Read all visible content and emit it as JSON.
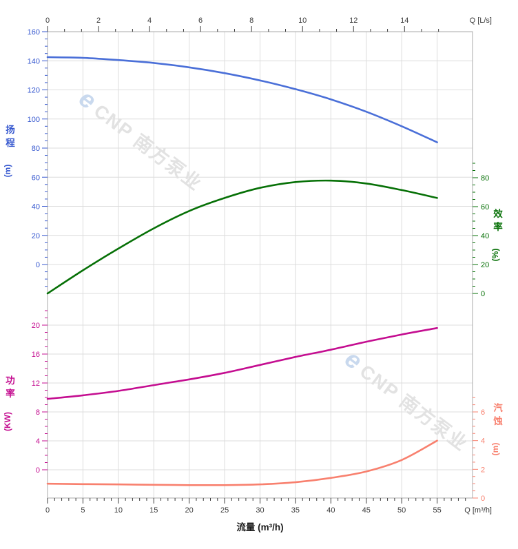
{
  "watermark": {
    "logo_glyph": "e",
    "text": "CNP 南方泵业",
    "positions": [
      [
        112,
        148
      ],
      [
        498,
        526
      ]
    ],
    "angle_deg": 37,
    "text_color": "#e2e2e2",
    "logo_color": "#c9d9ee"
  },
  "axes": {
    "top": {
      "unit_label": "Q [L/s]",
      "ticks": [
        0,
        2,
        4,
        6,
        8,
        10,
        12,
        14
      ],
      "color": "#3a3a3a"
    },
    "bottom": {
      "unit_label": "Q [m³/h]",
      "title": "流量 (m³/h)",
      "ticks": [
        0,
        5,
        10,
        15,
        20,
        25,
        30,
        35,
        40,
        45,
        50,
        55
      ],
      "color": "#3a3a3a"
    },
    "head": {
      "title_chars": [
        "扬",
        "程"
      ],
      "unit": "(m)",
      "ticks": [
        160,
        140,
        120,
        100,
        80,
        60,
        40,
        20,
        0
      ],
      "color": "#3557cf"
    },
    "efficiency": {
      "title_chars": [
        "效",
        "率"
      ],
      "unit": "(%)",
      "ticks": [
        80,
        60,
        40,
        20,
        0
      ],
      "color": "#067006"
    },
    "power": {
      "title_chars": [
        "功",
        "率"
      ],
      "unit": "(KW)",
      "ticks": [
        20,
        16,
        12,
        8,
        4,
        0
      ],
      "color": "#c40d90"
    },
    "npsh": {
      "title_chars": [
        "汽",
        "蚀"
      ],
      "unit": "(m)",
      "ticks": [
        6,
        4,
        2,
        0
      ],
      "color": "#f8806e"
    }
  },
  "chart_data": {
    "type": "line",
    "title": "",
    "xlabel": "流量 (m³/h)",
    "x_top_label": "Q [L/s]",
    "x": [
      0,
      5,
      10,
      15,
      20,
      25,
      30,
      35,
      40,
      45,
      50,
      55
    ],
    "x_range_m3h": [
      0,
      60
    ],
    "x_range_ls": [
      0,
      16.67
    ],
    "grid": true,
    "series": [
      {
        "name": "扬程",
        "unit": "m",
        "axis": "head",
        "color": "#4a6fd8",
        "axis_range_shown": [
          0,
          160
        ],
        "values": [
          142.5,
          142,
          140.5,
          138.5,
          135.5,
          131.5,
          126.5,
          120.5,
          113.5,
          105,
          95,
          84
        ]
      },
      {
        "name": "效率",
        "unit": "%",
        "axis": "efficiency",
        "color": "#067006",
        "axis_range_shown": [
          0,
          80
        ],
        "values": [
          0,
          16,
          31,
          45,
          57,
          66,
          73,
          77,
          78,
          76,
          71.5,
          66
        ]
      },
      {
        "name": "功率",
        "unit": "KW",
        "axis": "power",
        "color": "#c40d90",
        "axis_range_shown": [
          0,
          20
        ],
        "values": [
          9.8,
          10.3,
          10.9,
          11.7,
          12.5,
          13.4,
          14.5,
          15.6,
          16.6,
          17.7,
          18.7,
          19.6
        ]
      },
      {
        "name": "汽蚀",
        "unit": "m",
        "axis": "npsh",
        "color": "#f8806e",
        "axis_range_shown": [
          0,
          6
        ],
        "values": [
          1.0,
          0.97,
          0.95,
          0.92,
          0.9,
          0.9,
          0.95,
          1.1,
          1.4,
          1.85,
          2.65,
          4.0
        ]
      }
    ]
  },
  "colors": {
    "grid": "#dcdcdc",
    "border": "#a8a8a8",
    "background": "#ffffff"
  }
}
